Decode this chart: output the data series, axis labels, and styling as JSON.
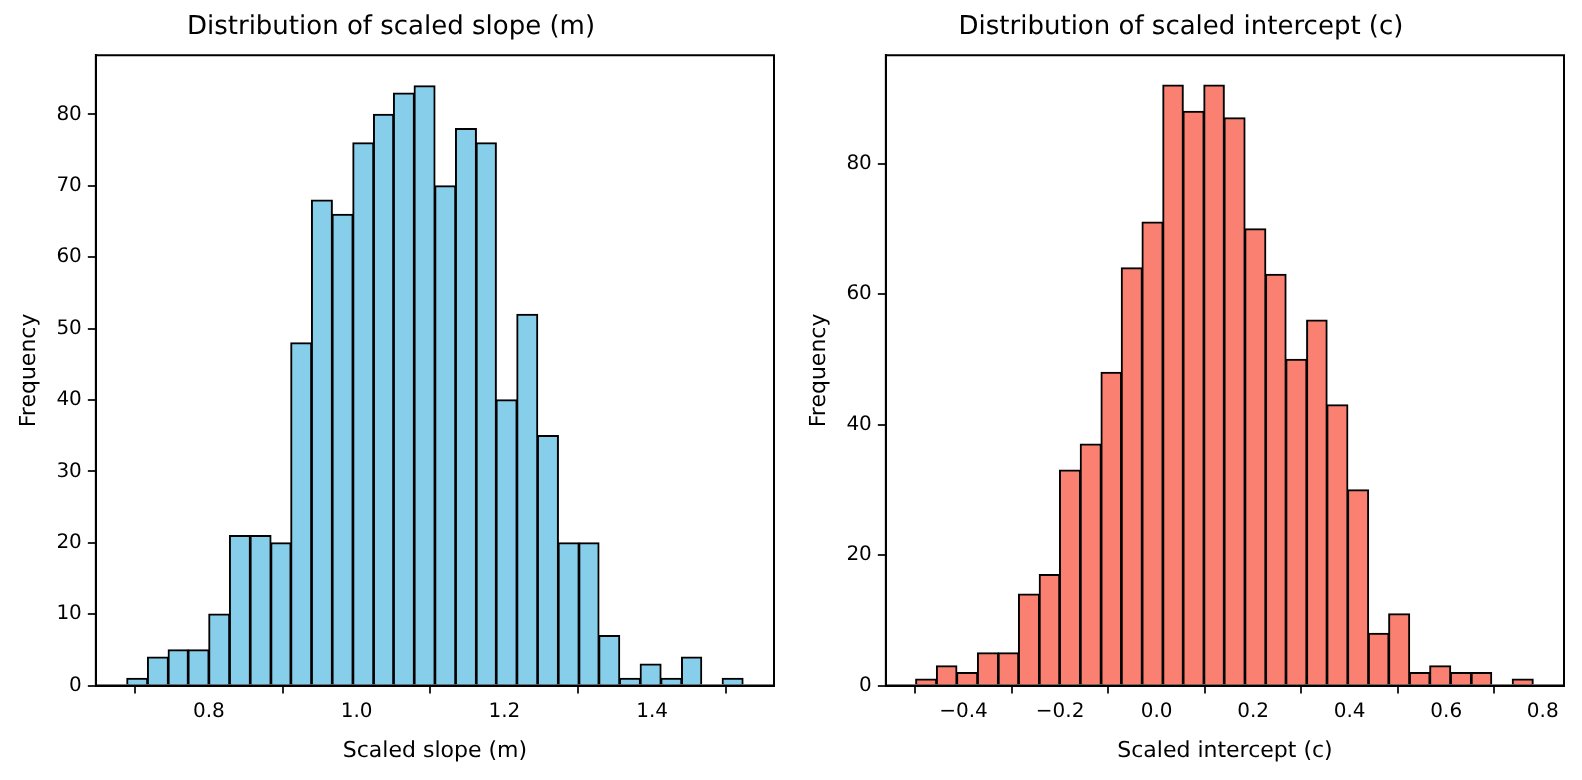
{
  "chart_data": [
    {
      "type": "histogram",
      "title": "Distribution of scaled slope (m)",
      "xlabel": "Scaled slope (m)",
      "ylabel": "Frequency",
      "color": "#87ceeb",
      "bins": [
        0.689,
        0.717,
        0.745,
        0.772,
        0.8,
        0.828,
        0.856,
        0.884,
        0.911,
        0.939,
        0.967,
        0.995,
        1.023,
        1.05,
        1.078,
        1.106,
        1.134,
        1.162,
        1.189,
        1.217,
        1.245,
        1.273,
        1.301,
        1.328,
        1.356,
        1.384,
        1.412,
        1.44,
        1.467,
        1.495,
        1.523
      ],
      "values": [
        1,
        4,
        5,
        5,
        10,
        21,
        21,
        20,
        48,
        68,
        66,
        76,
        80,
        83,
        84,
        70,
        78,
        76,
        40,
        52,
        35,
        20,
        20,
        7,
        1,
        3,
        1,
        4,
        0,
        1
      ],
      "xlim": [
        0.647,
        1.565
      ],
      "xticks": [
        {
          "value": 0.8,
          "label": "0.8"
        },
        {
          "value": 1.0,
          "label": "1.0"
        },
        {
          "value": 1.2,
          "label": "1.2"
        },
        {
          "value": 1.4,
          "label": "1.4"
        }
      ],
      "ylim": [
        0,
        88.3
      ],
      "yticks": [
        0,
        10,
        20,
        30,
        40,
        50,
        60,
        70,
        80
      ]
    },
    {
      "type": "histogram",
      "title": "Distribution of scaled intercept (c)",
      "xlabel": "Scaled intercept (c)",
      "ylabel": "Frequency",
      "color": "#fa8072",
      "bins": [
        -0.499,
        -0.456,
        -0.414,
        -0.371,
        -0.328,
        -0.286,
        -0.243,
        -0.201,
        -0.158,
        -0.115,
        -0.073,
        -0.03,
        0.013,
        0.055,
        0.098,
        0.14,
        0.183,
        0.226,
        0.268,
        0.311,
        0.353,
        0.396,
        0.439,
        0.481,
        0.524,
        0.566,
        0.609,
        0.652,
        0.694,
        0.737,
        0.78
      ],
      "values": [
        1,
        3,
        2,
        5,
        5,
        14,
        17,
        33,
        37,
        48,
        64,
        71,
        92,
        88,
        92,
        87,
        70,
        63,
        50,
        56,
        43,
        30,
        8,
        11,
        2,
        3,
        2,
        2,
        0,
        1
      ],
      "xlim": [
        -0.561,
        0.844
      ],
      "xticks": [
        {
          "value": -0.4,
          "label": "−0.4"
        },
        {
          "value": -0.2,
          "label": "−0.2"
        },
        {
          "value": 0.0,
          "label": "0.0"
        },
        {
          "value": 0.2,
          "label": "0.2"
        },
        {
          "value": 0.4,
          "label": "0.4"
        },
        {
          "value": 0.6,
          "label": "0.6"
        },
        {
          "value": 0.8,
          "label": "0.8"
        }
      ],
      "ylim": [
        0,
        96.6
      ],
      "yticks": [
        0,
        20,
        40,
        60,
        80
      ]
    }
  ]
}
